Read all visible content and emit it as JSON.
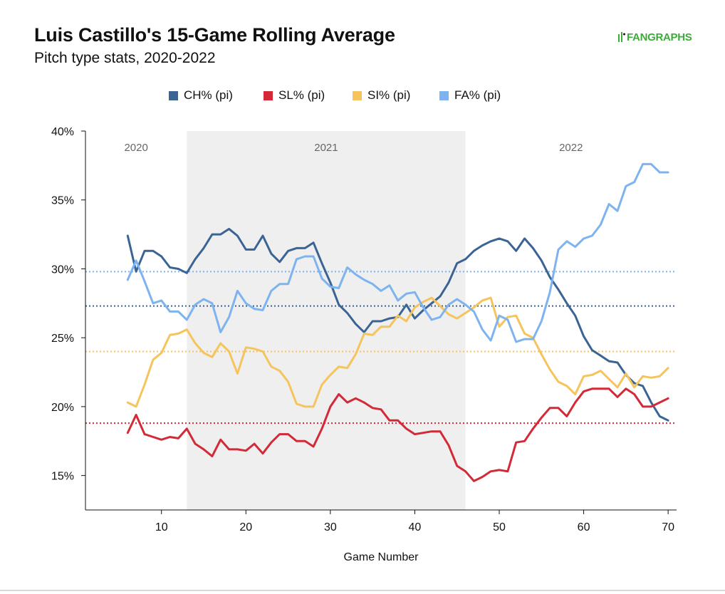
{
  "header": {
    "title": "Luis Castillo's 15-Game Rolling Average",
    "subtitle": "Pitch type stats, 2020-2022",
    "brand": "FANGRAPHS"
  },
  "chart_data": {
    "type": "line",
    "title": "Luis Castillo's 15-Game Rolling Average",
    "subtitle": "Pitch type stats, 2020-2022",
    "xlabel": "Game Number",
    "ylabel": "",
    "xlim": [
      1,
      71
    ],
    "ylim": [
      12.5,
      40
    ],
    "x_ticks": [
      10,
      20,
      30,
      40,
      50,
      60,
      70
    ],
    "y_ticks": [
      15,
      20,
      25,
      30,
      35,
      40
    ],
    "y_tick_format": "percent",
    "grid": false,
    "legend_position": "top-center",
    "regions": [
      {
        "label": "2020",
        "x_start": 1,
        "x_end": 13,
        "shaded": false
      },
      {
        "label": "2021",
        "x_start": 13,
        "x_end": 46,
        "shaded": true,
        "color": "#efefef"
      },
      {
        "label": "2022",
        "x_start": 46,
        "x_end": 71,
        "shaded": false
      }
    ],
    "x": [
      6,
      7,
      8,
      9,
      10,
      11,
      12,
      13,
      14,
      15,
      16,
      17,
      18,
      19,
      20,
      21,
      22,
      23,
      24,
      25,
      26,
      27,
      28,
      29,
      30,
      31,
      32,
      33,
      34,
      35,
      36,
      37,
      38,
      39,
      40,
      41,
      42,
      43,
      44,
      45,
      46,
      47,
      48,
      49,
      50,
      51,
      52,
      53,
      54,
      55,
      56,
      57,
      58,
      59,
      60,
      61,
      62,
      63,
      64,
      65,
      66,
      67,
      68,
      69,
      70
    ],
    "series": [
      {
        "name": "CH% (pi)",
        "color": "#3a6494",
        "average": 27.3,
        "values": [
          32.4,
          29.8,
          31.3,
          31.3,
          30.9,
          30.1,
          30.0,
          29.7,
          30.7,
          31.5,
          32.5,
          32.5,
          32.9,
          32.4,
          31.4,
          31.4,
          32.4,
          31.1,
          30.5,
          31.3,
          31.5,
          31.5,
          31.9,
          30.4,
          29.0,
          27.4,
          26.8,
          26.0,
          25.4,
          26.2,
          26.2,
          26.4,
          26.5,
          27.4,
          26.4,
          27.0,
          27.5,
          28.0,
          29.0,
          30.4,
          30.7,
          31.3,
          31.7,
          32.0,
          32.2,
          32.0,
          31.3,
          32.2,
          31.5,
          30.6,
          29.4,
          28.5,
          27.5,
          26.6,
          25.1,
          24.1,
          23.7,
          23.3,
          23.2,
          22.3,
          21.7,
          21.5,
          20.3,
          19.3,
          19.0
        ]
      },
      {
        "name": "SL% (pi)",
        "color": "#d32a37",
        "average": 18.8,
        "values": [
          18.1,
          19.4,
          18.0,
          17.8,
          17.6,
          17.8,
          17.7,
          18.4,
          17.3,
          16.9,
          16.4,
          17.6,
          16.9,
          16.9,
          16.8,
          17.3,
          16.6,
          17.4,
          18.0,
          18.0,
          17.5,
          17.5,
          17.1,
          18.4,
          20.0,
          20.9,
          20.3,
          20.6,
          20.3,
          19.9,
          19.8,
          19.0,
          19.0,
          18.4,
          18.0,
          18.1,
          18.2,
          18.2,
          17.2,
          15.7,
          15.3,
          14.6,
          14.9,
          15.3,
          15.4,
          15.3,
          17.4,
          17.5,
          18.4,
          19.2,
          19.9,
          19.9,
          19.3,
          20.3,
          21.1,
          21.3,
          21.3,
          21.3,
          20.7,
          21.3,
          20.9,
          20.0,
          20.0,
          20.3,
          20.6
        ]
      },
      {
        "name": "SI% (pi)",
        "color": "#f5c45c",
        "average": 24.0,
        "values": [
          20.3,
          20.0,
          21.6,
          23.4,
          23.9,
          25.2,
          25.3,
          25.6,
          24.6,
          23.9,
          23.6,
          24.6,
          24.0,
          22.4,
          24.3,
          24.2,
          24.0,
          22.9,
          22.6,
          21.8,
          20.2,
          20.0,
          20.0,
          21.6,
          22.3,
          22.9,
          22.8,
          23.8,
          25.3,
          25.2,
          25.8,
          25.8,
          26.6,
          26.2,
          27.2,
          27.6,
          27.9,
          27.3,
          26.7,
          26.4,
          26.8,
          27.2,
          27.7,
          27.9,
          25.8,
          26.5,
          26.6,
          25.3,
          25.0,
          23.8,
          22.7,
          21.8,
          21.5,
          20.9,
          22.2,
          22.3,
          22.6,
          22.0,
          21.4,
          22.4,
          21.4,
          22.2,
          22.1,
          22.2,
          22.8
        ]
      },
      {
        "name": "FA% (pi)",
        "color": "#7db4f0",
        "average": 29.8,
        "values": [
          29.2,
          30.6,
          29.1,
          27.5,
          27.7,
          26.9,
          26.9,
          26.3,
          27.4,
          27.8,
          27.5,
          25.4,
          26.5,
          28.4,
          27.5,
          27.1,
          27.0,
          28.4,
          28.9,
          28.9,
          30.7,
          30.9,
          30.9,
          29.3,
          28.7,
          28.6,
          30.1,
          29.6,
          29.2,
          28.9,
          28.4,
          28.8,
          27.7,
          28.2,
          28.3,
          27.2,
          26.3,
          26.5,
          27.4,
          27.8,
          27.4,
          26.9,
          25.6,
          24.8,
          26.6,
          26.3,
          24.7,
          24.9,
          24.9,
          26.2,
          28.3,
          31.4,
          32.0,
          31.6,
          32.2,
          32.4,
          33.2,
          34.7,
          34.2,
          36.0,
          36.3,
          37.6,
          37.6,
          37.0,
          37.0
        ]
      }
    ]
  }
}
